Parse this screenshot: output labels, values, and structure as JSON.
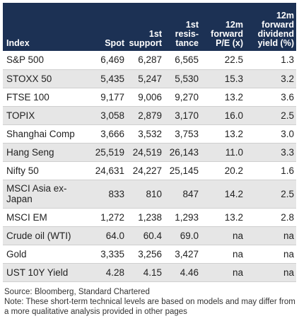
{
  "table": {
    "headers": [
      "Index",
      "Spot",
      "1st support",
      "1st resis-tance",
      "12m forward P/E (x)",
      "12m forward dividend yield (%)"
    ],
    "rows": [
      [
        "S&P 500",
        "6,469",
        "6,287",
        "6,565",
        "22.5",
        "1.3"
      ],
      [
        "STOXX 50",
        "5,435",
        "5,247",
        "5,530",
        "15.3",
        "3.2"
      ],
      [
        "FTSE 100",
        "9,177",
        "9,006",
        "9,270",
        "13.2",
        "3.6"
      ],
      [
        "TOPIX",
        "3,058",
        "2,879",
        "3,170",
        "16.0",
        "2.5"
      ],
      [
        "Shanghai Comp",
        "3,666",
        "3,532",
        "3,753",
        "13.2",
        "3.0"
      ],
      [
        "Hang Seng",
        "25,519",
        "24,519",
        "26,143",
        "11.0",
        "3.3"
      ],
      [
        "Nifty 50",
        "24,631",
        "24,227",
        "25,145",
        "20.2",
        "1.6"
      ],
      [
        "MSCI Asia ex-Japan",
        "833",
        "810",
        "847",
        "14.2",
        "2.5"
      ],
      [
        "MSCI EM",
        "1,272",
        "1,238",
        "1,293",
        "13.2",
        "2.8"
      ],
      [
        "Crude oil (WTI)",
        "64.0",
        "60.4",
        "69.0",
        "na",
        "na"
      ],
      [
        "Gold",
        "3,335",
        "3,256",
        "3,427",
        "na",
        "na"
      ],
      [
        "UST 10Y Yield",
        "4.28",
        "4.15",
        "4.46",
        "na",
        "na"
      ]
    ]
  },
  "footer": {
    "source": "Source: Bloomberg, Standard Chartered",
    "note": "Note: These short-term technical levels are based on models and may differ from a more qualitative analysis provided in other pages"
  },
  "colors": {
    "header_bg": "#1c3154",
    "header_text": "#ffffff",
    "stripe": "#e6e6e6"
  }
}
